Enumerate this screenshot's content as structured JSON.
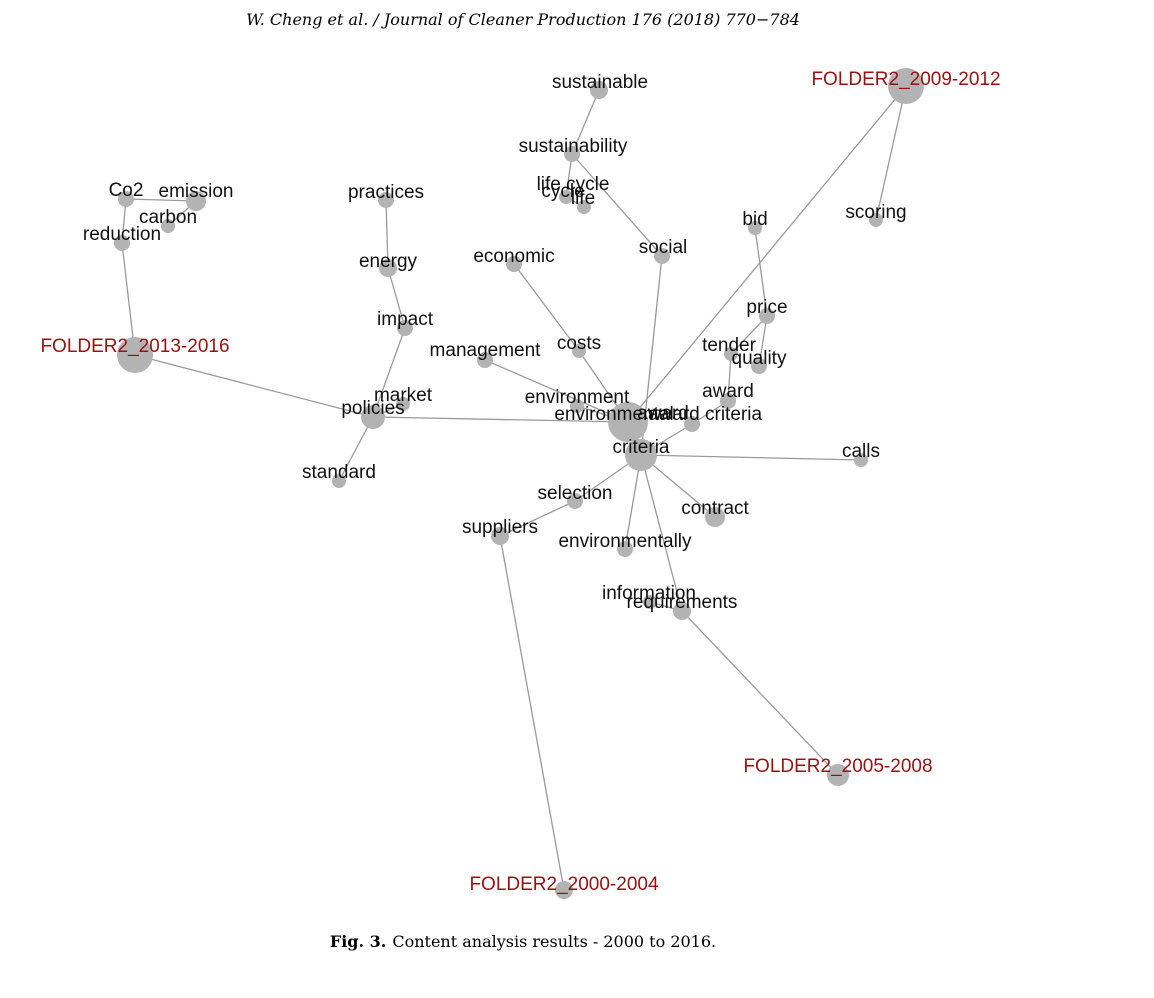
{
  "header": {
    "title": "W. Cheng et al. / Journal of Cleaner Production 176 (2018) 770−784"
  },
  "figure": {
    "nodes": [
      {
        "label": "sustainable"
      },
      {
        "label": "sustainability"
      },
      {
        "label": "life cycle"
      },
      {
        "label": "cycle"
      },
      {
        "label": "life"
      },
      {
        "label": "social"
      },
      {
        "label": "economic"
      },
      {
        "label": "bid"
      },
      {
        "label": "scoring"
      },
      {
        "label": "FOLDER2_2009-2012"
      },
      {
        "label": "Co2"
      },
      {
        "label": "emission"
      },
      {
        "label": "carbon"
      },
      {
        "label": "reduction"
      },
      {
        "label": "FOLDER2_2013-2016"
      },
      {
        "label": "practices"
      },
      {
        "label": "energy"
      },
      {
        "label": "impact"
      },
      {
        "label": "market"
      },
      {
        "label": "policies"
      },
      {
        "label": "standard"
      },
      {
        "label": "management"
      },
      {
        "label": "costs"
      },
      {
        "label": "environment"
      },
      {
        "label": "environmental"
      },
      {
        "label": "award"
      },
      {
        "label": "criteria"
      },
      {
        "label": "award criteria"
      },
      {
        "label": "price"
      },
      {
        "label": "tender"
      },
      {
        "label": "quality"
      },
      {
        "label": "award"
      },
      {
        "label": "calls"
      },
      {
        "label": "selection"
      },
      {
        "label": "suppliers"
      },
      {
        "label": "contract"
      },
      {
        "label": "environmentally"
      },
      {
        "label": "information"
      },
      {
        "label": "requirements"
      },
      {
        "label": "FOLDER2_2005-2008"
      },
      {
        "label": "FOLDER2_2000-2004"
      }
    ],
    "caption": {
      "label": "Fig. 3.",
      "text": "Content analysis results - 2000 to 2016."
    }
  }
}
